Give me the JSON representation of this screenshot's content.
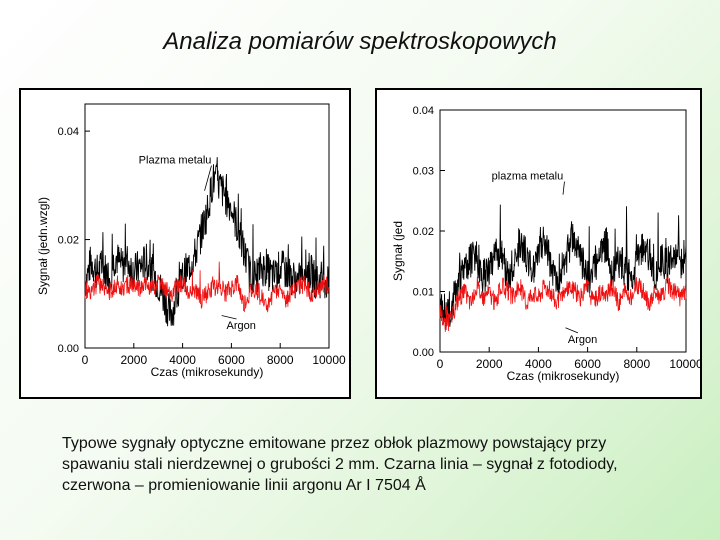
{
  "slide": {
    "title": "Analiza pomiarów spektroskopowych",
    "caption": "Typowe sygnały optyczne emitowane przez obłok plazmowy powstający przy spawaniu stali nierdzewnej o grubości 2 mm. Czarna linia – sygnał z fotodiody, czerwona – promieniowanie linii argonu Ar I 7504 Å"
  },
  "chart_data": [
    {
      "type": "line",
      "xlabel": "Czas (mikrosekundy)",
      "ylabel": "Sygnał (jedn.wzgl)",
      "xlim": [
        0,
        10000
      ],
      "ylim": [
        0,
        0.045
      ],
      "xticks": [
        0,
        2000,
        4000,
        6000,
        8000,
        10000
      ],
      "xtick_labels": [
        "0",
        "2000",
        "4000",
        "6000",
        "8000",
        "10000"
      ],
      "yticks": [
        0,
        0.02,
        0.04
      ],
      "ytick_labels": [
        "0.00",
        "0.02",
        "0.04"
      ],
      "grid": false,
      "series": [
        {
          "color": "#000000",
          "x": [
            0,
            250,
            500,
            750,
            1000,
            1250,
            1500,
            1750,
            2000,
            2250,
            2500,
            2750,
            3000,
            3250,
            3500,
            3750,
            4000,
            4250,
            4500,
            4750,
            5000,
            5250,
            5500,
            5750,
            6000,
            6250,
            6500,
            6750,
            7000,
            7250,
            7500,
            7750,
            8000,
            8250,
            8500,
            8750,
            9000,
            9250,
            9500,
            9750,
            10000
          ],
          "values": [
            0.012,
            0.016,
            0.014,
            0.015,
            0.013,
            0.017,
            0.015,
            0.016,
            0.014,
            0.015,
            0.016,
            0.014,
            0.012,
            0.009,
            0.006,
            0.009,
            0.013,
            0.015,
            0.017,
            0.021,
            0.025,
            0.031,
            0.03,
            0.028,
            0.026,
            0.022,
            0.018,
            0.014,
            0.013,
            0.015,
            0.014,
            0.013,
            0.015,
            0.014,
            0.013,
            0.012,
            0.015,
            0.014,
            0.012,
            0.013,
            0.012
          ]
        },
        {
          "color": "#ee1111",
          "x": [
            0,
            250,
            500,
            750,
            1000,
            1250,
            1500,
            1750,
            2000,
            2250,
            2500,
            2750,
            3000,
            3250,
            3500,
            3750,
            4000,
            4250,
            4500,
            4750,
            5000,
            5250,
            5500,
            5750,
            6000,
            6250,
            6500,
            6750,
            7000,
            7250,
            7500,
            7750,
            8000,
            8250,
            8500,
            8750,
            9000,
            9250,
            9500,
            9750,
            10000
          ],
          "values": [
            0.011,
            0.01,
            0.012,
            0.011,
            0.01,
            0.012,
            0.011,
            0.012,
            0.011,
            0.011,
            0.012,
            0.011,
            0.012,
            0.011,
            0.01,
            0.011,
            0.012,
            0.01,
            0.011,
            0.009,
            0.01,
            0.011,
            0.012,
            0.01,
            0.011,
            0.012,
            0.008,
            0.01,
            0.011,
            0.009,
            0.008,
            0.01,
            0.011,
            0.009,
            0.01,
            0.011,
            0.012,
            0.01,
            0.011,
            0.012,
            0.011
          ]
        }
      ],
      "annotations": [
        {
          "text": "Plazma metalu",
          "x": 2200,
          "y": 0.034,
          "arrow_to": [
            4900,
            0.029
          ]
        },
        {
          "text": "Argon",
          "x": 5800,
          "y": 0.0035,
          "arrow_to": [
            5600,
            0.006
          ]
        }
      ]
    },
    {
      "type": "line",
      "xlabel": "Czas (mikrosekundy)",
      "ylabel": "Sygnał (jed",
      "xlim": [
        0,
        10000
      ],
      "ylim": [
        0,
        0.04
      ],
      "xticks": [
        0,
        2000,
        4000,
        6000,
        8000,
        10000
      ],
      "xtick_labels": [
        "0",
        "2000",
        "4000",
        "6000",
        "8000",
        "10000"
      ],
      "yticks": [
        0,
        0.01,
        0.02,
        0.03,
        0.04
      ],
      "ytick_labels": [
        "0.00",
        "0.01",
        "0.02",
        "0.03",
        "0.04"
      ],
      "grid": false,
      "series": [
        {
          "color": "#000000",
          "x": [
            0,
            250,
            500,
            750,
            1000,
            1250,
            1500,
            1750,
            2000,
            2250,
            2500,
            2750,
            3000,
            3250,
            3500,
            3750,
            4000,
            4250,
            4500,
            4750,
            5000,
            5250,
            5500,
            5750,
            6000,
            6250,
            6500,
            6750,
            7000,
            7250,
            7500,
            7750,
            8000,
            8250,
            8500,
            8750,
            9000,
            9250,
            9500,
            9750,
            10000
          ],
          "values": [
            0.009,
            0.006,
            0.008,
            0.011,
            0.013,
            0.015,
            0.016,
            0.012,
            0.014,
            0.017,
            0.016,
            0.012,
            0.015,
            0.018,
            0.016,
            0.013,
            0.017,
            0.019,
            0.015,
            0.011,
            0.014,
            0.017,
            0.019,
            0.015,
            0.012,
            0.014,
            0.016,
            0.018,
            0.013,
            0.015,
            0.014,
            0.012,
            0.015,
            0.017,
            0.016,
            0.013,
            0.015,
            0.014,
            0.017,
            0.015,
            0.016
          ]
        },
        {
          "color": "#ee1111",
          "x": [
            0,
            250,
            500,
            750,
            1000,
            1250,
            1500,
            1750,
            2000,
            2250,
            2500,
            2750,
            3000,
            3250,
            3500,
            3750,
            4000,
            4250,
            4500,
            4750,
            5000,
            5250,
            5500,
            5750,
            6000,
            6250,
            6500,
            6750,
            7000,
            7250,
            7500,
            7750,
            8000,
            8250,
            8500,
            8750,
            9000,
            9250,
            9500,
            9750,
            10000
          ],
          "values": [
            0.007,
            0.004,
            0.006,
            0.009,
            0.01,
            0.008,
            0.011,
            0.009,
            0.01,
            0.008,
            0.011,
            0.01,
            0.009,
            0.011,
            0.008,
            0.01,
            0.009,
            0.011,
            0.01,
            0.008,
            0.009,
            0.011,
            0.01,
            0.009,
            0.011,
            0.008,
            0.01,
            0.009,
            0.011,
            0.008,
            0.01,
            0.009,
            0.011,
            0.01,
            0.008,
            0.01,
            0.009,
            0.011,
            0.01,
            0.009,
            0.01
          ]
        }
      ],
      "annotations": [
        {
          "text": "plazma metalu",
          "x": 2100,
          "y": 0.0285,
          "arrow_to": [
            5000,
            0.026
          ]
        },
        {
          "text": "Argon",
          "x": 5200,
          "y": 0.0015,
          "arrow_to": [
            5100,
            0.004
          ]
        }
      ]
    }
  ]
}
